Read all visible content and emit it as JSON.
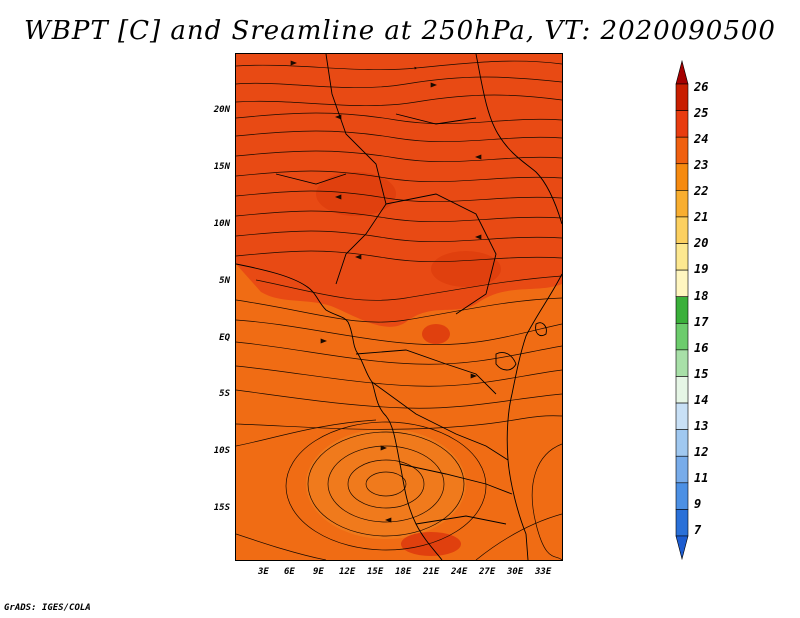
{
  "title": "WBPT [C] and Sreamline at 250hPa, VT: 2020090500",
  "footer": "GrADS: IGES/COLA",
  "axes": {
    "lat_labels": [
      "20N",
      "15N",
      "10N",
      "5N",
      "EQ",
      "5S",
      "10S",
      "15S"
    ],
    "lon_labels": [
      "3E",
      "6E",
      "9E",
      "12E",
      "15E",
      "18E",
      "21E",
      "24E",
      "27E",
      "30E",
      "33E"
    ]
  },
  "colorbar": {
    "labels": [
      "26",
      "25",
      "24",
      "23",
      "22",
      "21",
      "20",
      "19",
      "18",
      "17",
      "16",
      "15",
      "14",
      "13",
      "12",
      "11",
      "9",
      "7"
    ],
    "colors": [
      "#a50000",
      "#c81e00",
      "#e83c10",
      "#f06010",
      "#f68a10",
      "#f8ae30",
      "#fcd060",
      "#fde890",
      "#fff6c0",
      "#3ab03a",
      "#6ccc6c",
      "#a8e0a8",
      "#e6f6e6",
      "#c8e0f6",
      "#a0c8f0",
      "#78acea",
      "#4c90e4",
      "#2a70d8",
      "#1c5cd0"
    ]
  },
  "map": {
    "field_colors": {
      "north": "#e84a14",
      "south": "#f06c14",
      "southern_cyclone": "#f07a1c",
      "warm_patches": "#e0400e"
    }
  }
}
